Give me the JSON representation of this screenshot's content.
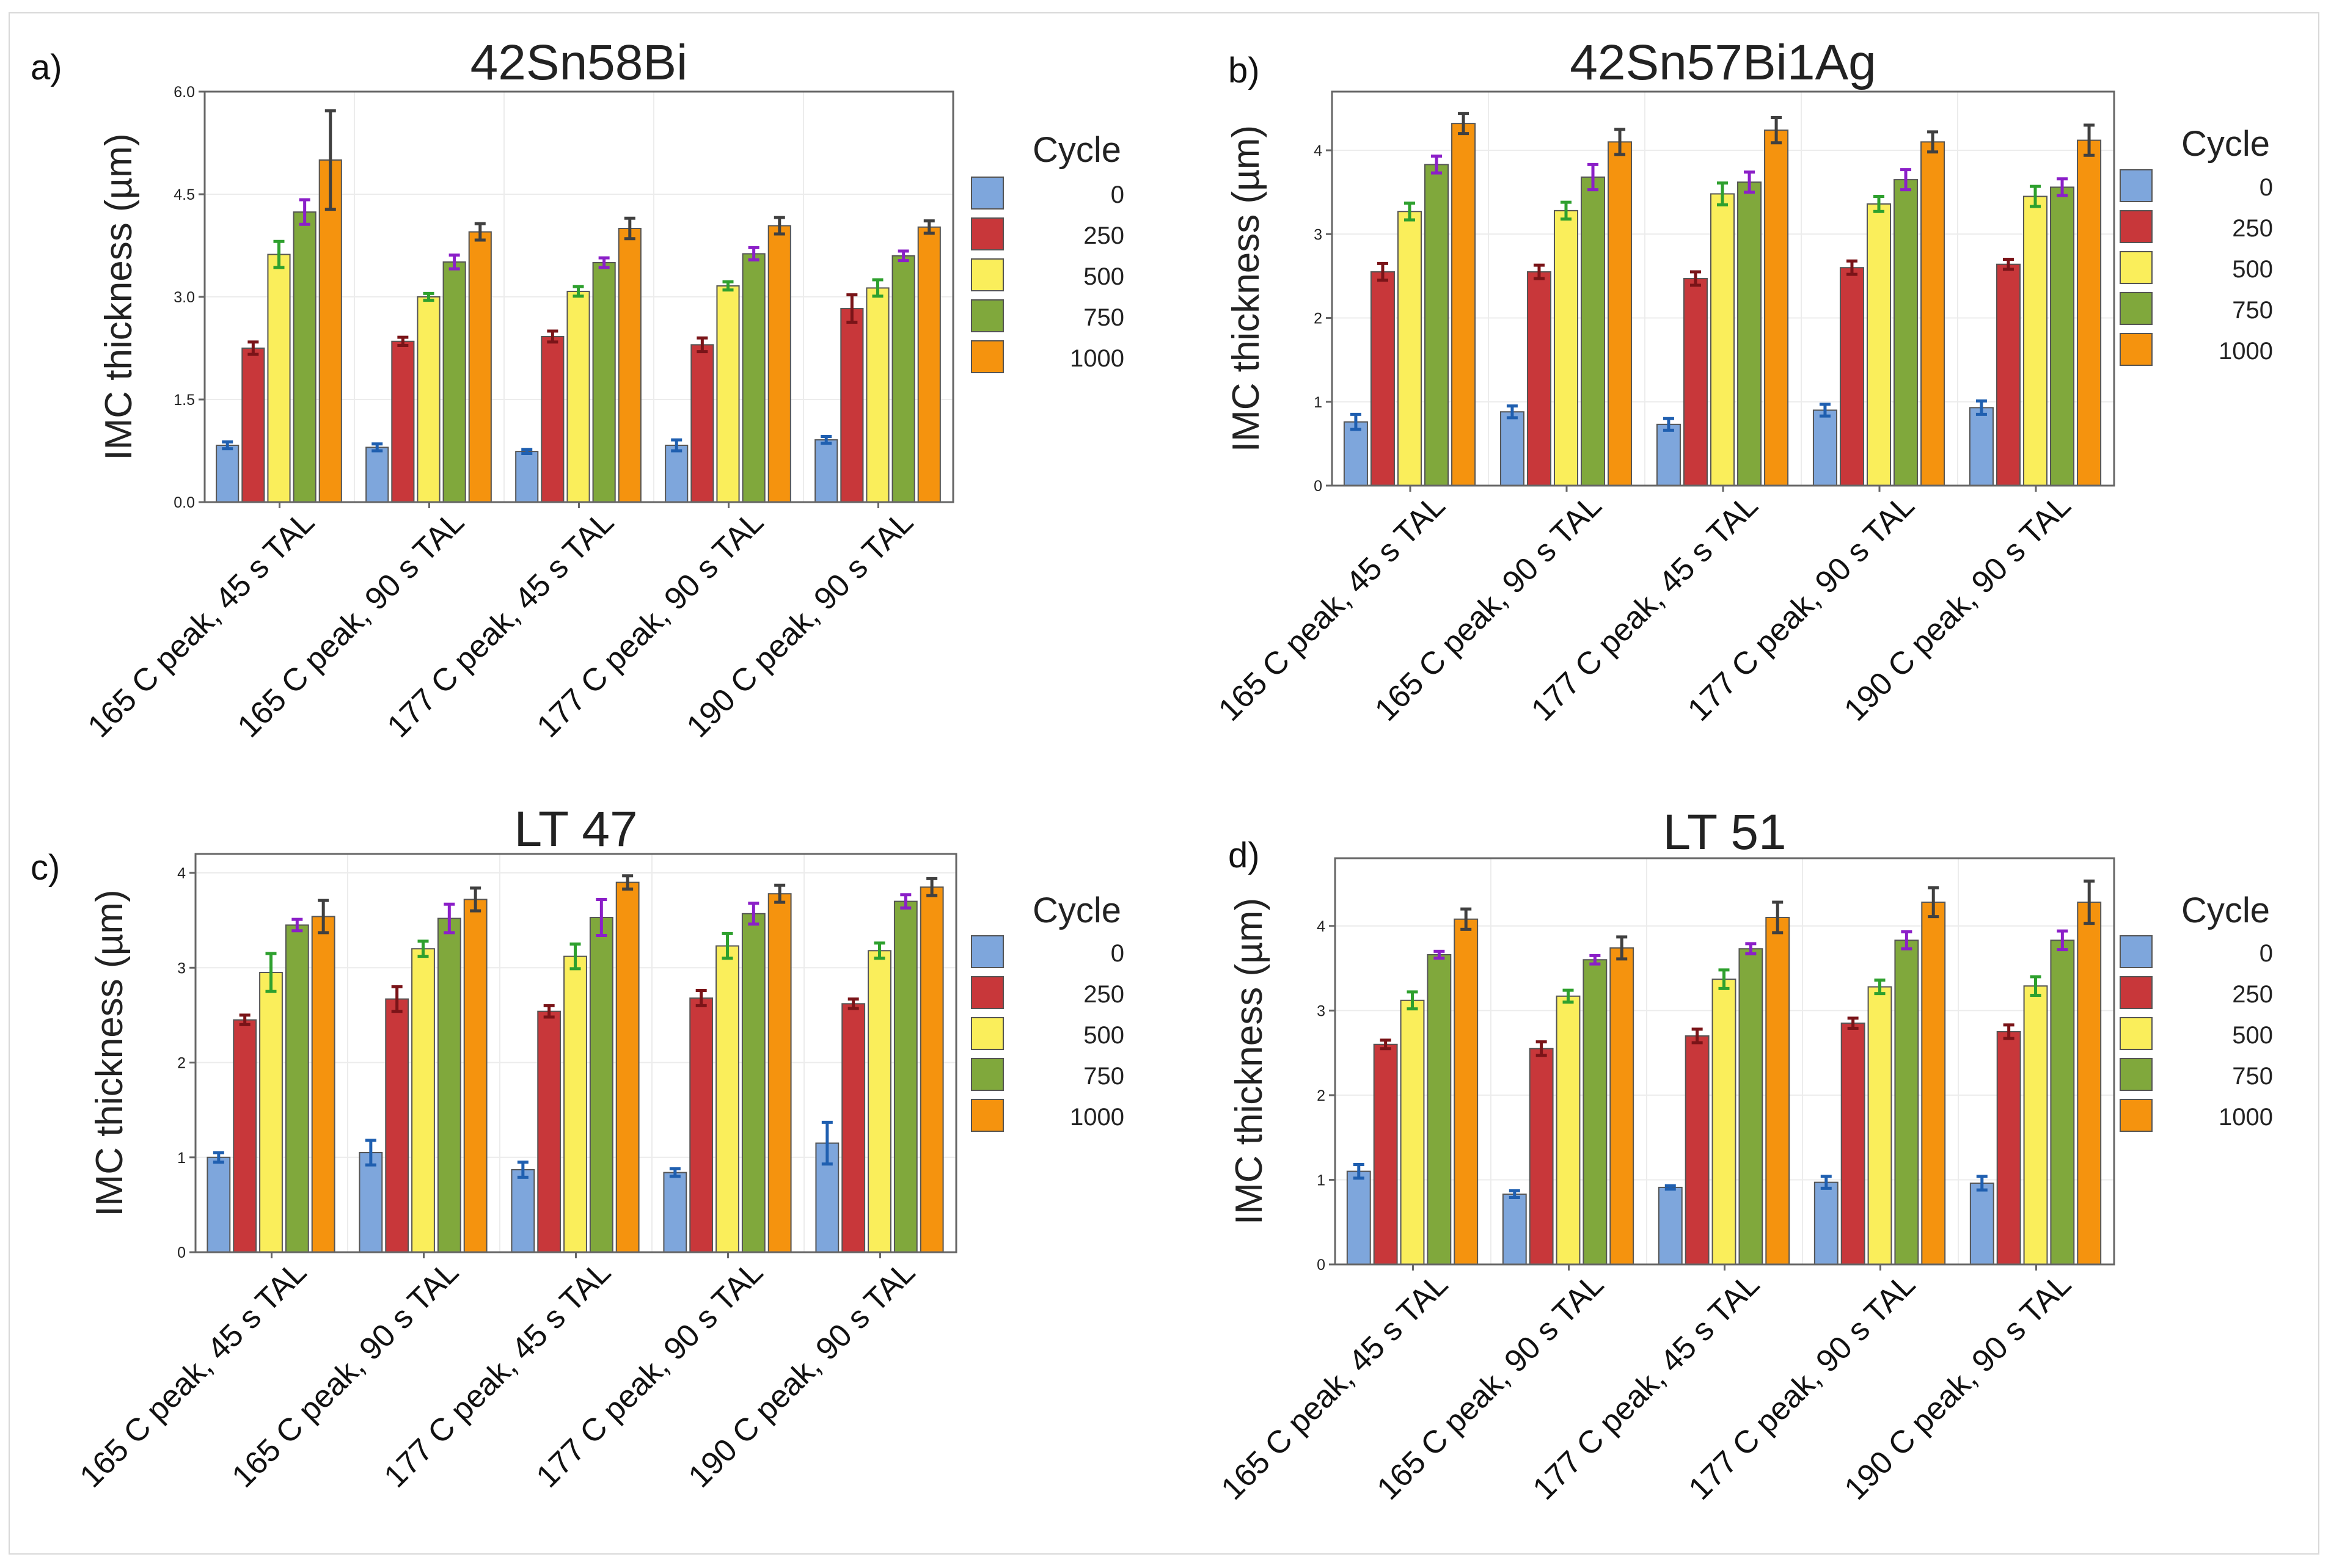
{
  "chart_data": [
    {
      "type": "bar",
      "panel_label": "a)",
      "title": "42Sn58Bi",
      "ylabel": "IMC thickness (µm)",
      "xlabel": "",
      "ylim": [
        0,
        6.0
      ],
      "yticks": [
        "0.0",
        "1.5",
        "3.0",
        "4.5",
        "6.0"
      ],
      "categories": [
        "165 C peak, 45 s TAL",
        "165 C peak, 90 s TAL",
        "177 C peak, 45 s TAL",
        "177 C peak, 90 s TAL",
        "190 C peak, 90 s TAL"
      ],
      "legend_title": "Cycle",
      "series": [
        {
          "name": "0",
          "color": "#7ea6dc",
          "err_color": "#1f5fb0",
          "values": [
            0.83,
            0.8,
            0.74,
            0.83,
            0.91
          ],
          "errors": [
            0.05,
            0.05,
            0.03,
            0.08,
            0.05
          ]
        },
        {
          "name": "250",
          "color": "#c8373a",
          "err_color": "#7a1418",
          "values": [
            2.25,
            2.35,
            2.42,
            2.3,
            2.83
          ],
          "errors": [
            0.09,
            0.06,
            0.08,
            0.1,
            0.2
          ]
        },
        {
          "name": "500",
          "color": "#faee5b",
          "err_color": "#2ea02e",
          "values": [
            3.62,
            3.0,
            3.08,
            3.16,
            3.13
          ],
          "errors": [
            0.19,
            0.05,
            0.07,
            0.06,
            0.12
          ]
        },
        {
          "name": "750",
          "color": "#80a83c",
          "err_color": "#8b1fc8",
          "values": [
            4.24,
            3.51,
            3.5,
            3.63,
            3.6
          ],
          "errors": [
            0.18,
            0.1,
            0.07,
            0.09,
            0.07
          ]
        },
        {
          "name": "1000",
          "color": "#f5930e",
          "err_color": "#404040",
          "values": [
            5.0,
            3.95,
            4.0,
            4.04,
            4.02
          ],
          "errors": [
            0.72,
            0.12,
            0.15,
            0.12,
            0.09
          ]
        }
      ]
    },
    {
      "type": "bar",
      "panel_label": "b)",
      "title": "42Sn57Bi1Ag",
      "ylabel": "IMC thickness (µm)",
      "xlabel": "",
      "ylim": [
        0,
        4.7
      ],
      "yticks": [
        "0",
        "1",
        "2",
        "3",
        "4"
      ],
      "categories": [
        "165 C peak, 45 s TAL",
        "165 C peak, 90 s TAL",
        "177 C peak, 45 s TAL",
        "177 C peak, 90 s TAL",
        "190 C peak, 90 s TAL"
      ],
      "legend_title": "Cycle",
      "series": [
        {
          "name": "0",
          "color": "#7ea6dc",
          "err_color": "#1f5fb0",
          "values": [
            0.76,
            0.88,
            0.73,
            0.9,
            0.93
          ],
          "errors": [
            0.09,
            0.07,
            0.07,
            0.07,
            0.08
          ]
        },
        {
          "name": "250",
          "color": "#c8373a",
          "err_color": "#7a1418",
          "values": [
            2.55,
            2.55,
            2.47,
            2.6,
            2.64
          ],
          "errors": [
            0.1,
            0.08,
            0.08,
            0.08,
            0.06
          ]
        },
        {
          "name": "500",
          "color": "#faee5b",
          "err_color": "#2ea02e",
          "values": [
            3.27,
            3.28,
            3.48,
            3.36,
            3.45
          ],
          "errors": [
            0.1,
            0.1,
            0.13,
            0.09,
            0.12
          ]
        },
        {
          "name": "750",
          "color": "#80a83c",
          "err_color": "#8b1fc8",
          "values": [
            3.83,
            3.68,
            3.62,
            3.65,
            3.56
          ],
          "errors": [
            0.1,
            0.15,
            0.12,
            0.12,
            0.1
          ]
        },
        {
          "name": "1000",
          "color": "#f5930e",
          "err_color": "#404040",
          "values": [
            4.32,
            4.1,
            4.24,
            4.1,
            4.12
          ],
          "errors": [
            0.12,
            0.15,
            0.15,
            0.12,
            0.18
          ]
        }
      ]
    },
    {
      "type": "bar",
      "panel_label": "c)",
      "title": "LT 47",
      "ylabel": "IMC thickness (µm)",
      "xlabel": "",
      "ylim": [
        0,
        4.2
      ],
      "yticks": [
        "0",
        "1",
        "2",
        "3",
        "4"
      ],
      "categories": [
        "165 C peak, 45 s TAL",
        "165 C peak, 90 s TAL",
        "177 C peak, 45 s TAL",
        "177 C peak, 90 s TAL",
        "190 C peak, 90 s TAL"
      ],
      "legend_title": "Cycle",
      "series": [
        {
          "name": "0",
          "color": "#7ea6dc",
          "err_color": "#1f5fb0",
          "values": [
            1.0,
            1.05,
            0.87,
            0.84,
            1.15
          ],
          "errors": [
            0.05,
            0.13,
            0.08,
            0.04,
            0.22
          ]
        },
        {
          "name": "250",
          "color": "#c8373a",
          "err_color": "#7a1418",
          "values": [
            2.45,
            2.67,
            2.54,
            2.68,
            2.62
          ],
          "errors": [
            0.05,
            0.13,
            0.06,
            0.08,
            0.05
          ]
        },
        {
          "name": "500",
          "color": "#faee5b",
          "err_color": "#2ea02e",
          "values": [
            2.95,
            3.2,
            3.12,
            3.23,
            3.18
          ],
          "errors": [
            0.2,
            0.08,
            0.13,
            0.13,
            0.08
          ]
        },
        {
          "name": "750",
          "color": "#80a83c",
          "err_color": "#8b1fc8",
          "values": [
            3.45,
            3.52,
            3.53,
            3.57,
            3.7
          ],
          "errors": [
            0.06,
            0.15,
            0.19,
            0.11,
            0.07
          ]
        },
        {
          "name": "1000",
          "color": "#f5930e",
          "err_color": "#404040",
          "values": [
            3.54,
            3.72,
            3.9,
            3.78,
            3.85
          ],
          "errors": [
            0.17,
            0.12,
            0.07,
            0.09,
            0.09
          ]
        }
      ]
    },
    {
      "type": "bar",
      "panel_label": "d)",
      "title": "LT 51",
      "ylabel": "IMC thickness (µm)",
      "xlabel": "",
      "ylim": [
        0,
        4.8
      ],
      "yticks": [
        "0",
        "1",
        "2",
        "3",
        "4"
      ],
      "categories": [
        "165 C peak, 45 s TAL",
        "165 C peak, 90 s TAL",
        "177 C peak, 45 s TAL",
        "177 C peak, 90 s TAL",
        "190 C peak, 90 s TAL"
      ],
      "legend_title": "Cycle",
      "series": [
        {
          "name": "0",
          "color": "#7ea6dc",
          "err_color": "#1f5fb0",
          "values": [
            1.1,
            0.83,
            0.91,
            0.97,
            0.96
          ],
          "errors": [
            0.08,
            0.04,
            0.02,
            0.07,
            0.08
          ]
        },
        {
          "name": "250",
          "color": "#c8373a",
          "err_color": "#7a1418",
          "values": [
            2.6,
            2.55,
            2.7,
            2.85,
            2.75
          ],
          "errors": [
            0.05,
            0.08,
            0.08,
            0.06,
            0.08
          ]
        },
        {
          "name": "500",
          "color": "#faee5b",
          "err_color": "#2ea02e",
          "values": [
            3.12,
            3.17,
            3.37,
            3.28,
            3.29
          ],
          "errors": [
            0.1,
            0.07,
            0.11,
            0.08,
            0.11
          ]
        },
        {
          "name": "750",
          "color": "#80a83c",
          "err_color": "#8b1fc8",
          "values": [
            3.66,
            3.6,
            3.73,
            3.83,
            3.83
          ],
          "errors": [
            0.04,
            0.05,
            0.06,
            0.1,
            0.11
          ]
        },
        {
          "name": "1000",
          "color": "#f5930e",
          "err_color": "#404040",
          "values": [
            4.08,
            3.74,
            4.1,
            4.28,
            4.28
          ],
          "errors": [
            0.12,
            0.13,
            0.18,
            0.17,
            0.25
          ]
        }
      ]
    }
  ]
}
